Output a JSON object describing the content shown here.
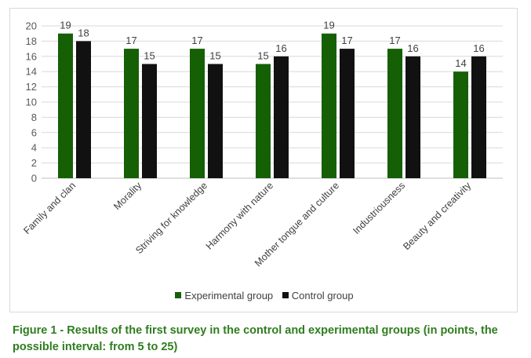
{
  "chart_data": {
    "type": "bar",
    "title": "",
    "xlabel": "",
    "ylabel": "",
    "ylim": [
      0,
      20
    ],
    "yticks": [
      0,
      2,
      4,
      6,
      8,
      10,
      12,
      14,
      16,
      18,
      20
    ],
    "grid": true,
    "legend_position": "bottom",
    "categories": [
      "Family and clan",
      "Morality",
      "Striving for knowledge",
      "Harmony with nature",
      "Mother tongue and culture",
      "Industriousness",
      "Beauty and creativity"
    ],
    "series": [
      {
        "name": "Experimental group",
        "color": "#155f05",
        "values": [
          19,
          17,
          17,
          15,
          19,
          17,
          14
        ]
      },
      {
        "name": "Control group",
        "color": "#111111",
        "values": [
          18,
          15,
          15,
          16,
          17,
          16,
          16
        ]
      }
    ]
  },
  "caption": "Figure 1 - Results of the first survey in the control and experimental groups (in points, the possible interval: from 5 to 25)"
}
